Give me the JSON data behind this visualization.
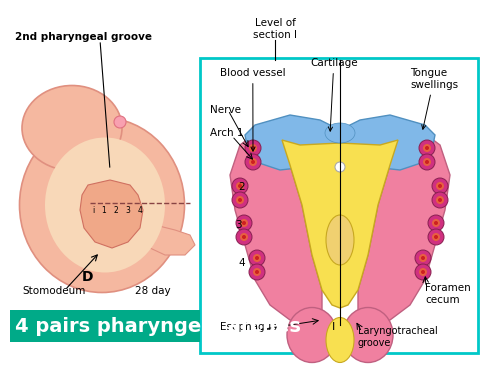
{
  "bg_color": "#ffffff",
  "right_panel_border": "#00c8c8",
  "banner_bg": "#00aa88",
  "banner_text": "4 pairs pharyngeal arches",
  "banner_text_color": "#ffffff",
  "banner_text_size": 14,
  "left_labels": {
    "groove": "2nd pharyngeal groove",
    "D": "D",
    "stomodeum": "Stomodeum",
    "days": "28 day"
  },
  "top_label": "Level of\nsection I",
  "right_labels": {
    "blood_vessel": "Blood vessel",
    "cartilage": "Cartilage",
    "tongue": "Tongue\nswellings",
    "nerve": "Nerve",
    "arch1": "Arch 1",
    "arch2": "2",
    "arch3": "3",
    "arch4": "4",
    "foramen": "Foramen\ncecum",
    "esophagus": "Esophagus",
    "laryngo": "Laryngotracheal\ngroove",
    "I_label": "I"
  },
  "colors": {
    "embryo_body": "#f5b8a0",
    "embryo_inner": "#f8d8b8",
    "embryo_edge": "#e09080",
    "arch_pink": "#f080a0",
    "arch_blue": "#80b8e8",
    "arch_yellow": "#f8e050",
    "arch_yellow_center": "#f0c840",
    "dot_outer": "#d03080",
    "dot_mid": "#e86040",
    "dot_inner": "#cc2020",
    "groove_line_color": "#cc4444"
  }
}
